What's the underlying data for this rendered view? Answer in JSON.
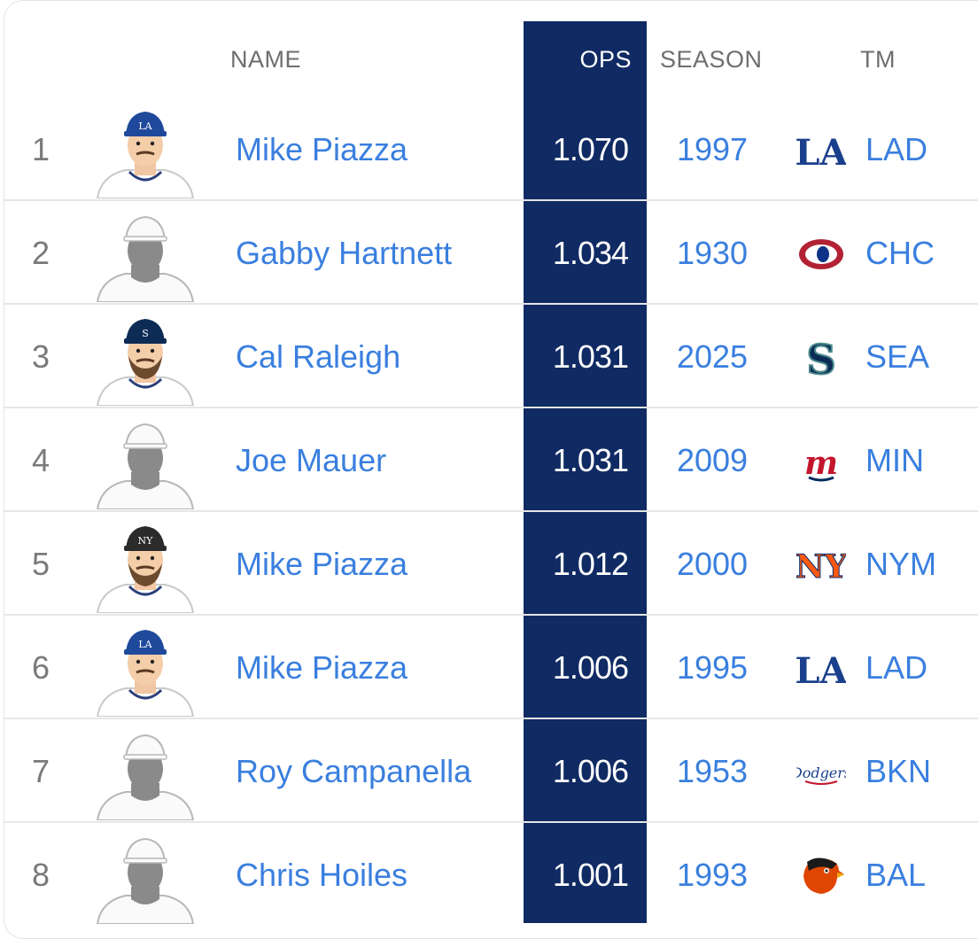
{
  "header": {
    "name": "NAME",
    "ops": "OPS",
    "season": "SEASON",
    "tm": "TM"
  },
  "colors": {
    "ops_column": "#102a63",
    "link": "#3a7fdf",
    "rank": "#7a7a7a",
    "header_text": "#6e6e6e"
  },
  "rows": [
    {
      "rank": "1",
      "name": "Mike Piazza",
      "ops": "1.070",
      "season": "1997",
      "tm": "LAD",
      "logo": "dodgers-la-logo-icon",
      "avatar": "player-headshot-icon"
    },
    {
      "rank": "2",
      "name": "Gabby Hartnett",
      "ops": "1.034",
      "season": "1930",
      "tm": "CHC",
      "logo": "cubs-logo-icon",
      "avatar": "placeholder-headshot-icon"
    },
    {
      "rank": "3",
      "name": "Cal Raleigh",
      "ops": "1.031",
      "season": "2025",
      "tm": "SEA",
      "logo": "mariners-logo-icon",
      "avatar": "player-headshot-icon"
    },
    {
      "rank": "4",
      "name": "Joe Mauer",
      "ops": "1.031",
      "season": "2009",
      "tm": "MIN",
      "logo": "twins-logo-icon",
      "avatar": "placeholder-headshot-icon"
    },
    {
      "rank": "5",
      "name": "Mike Piazza",
      "ops": "1.012",
      "season": "2000",
      "tm": "NYM",
      "logo": "mets-logo-icon",
      "avatar": "player-headshot-icon"
    },
    {
      "rank": "6",
      "name": "Mike Piazza",
      "ops": "1.006",
      "season": "1995",
      "tm": "LAD",
      "logo": "dodgers-la-logo-icon",
      "avatar": "player-headshot-icon"
    },
    {
      "rank": "7",
      "name": "Roy Campanella",
      "ops": "1.006",
      "season": "1953",
      "tm": "BKN",
      "logo": "brooklyn-dodgers-logo-icon",
      "avatar": "placeholder-headshot-icon"
    },
    {
      "rank": "8",
      "name": "Chris Hoiles",
      "ops": "1.001",
      "season": "1993",
      "tm": "BAL",
      "logo": "orioles-logo-icon",
      "avatar": "placeholder-headshot-icon"
    }
  ]
}
